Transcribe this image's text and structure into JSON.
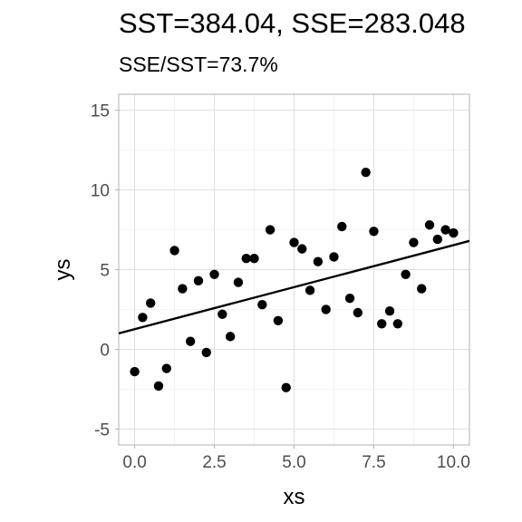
{
  "chart_data": {
    "type": "scatter",
    "title": "SST=384.04, SSE=283.048",
    "subtitle": "SSE/SST=73.7%",
    "xlabel": "xs",
    "ylabel": "ys",
    "xlim": [
      -0.5,
      10.5
    ],
    "ylim": [
      -6,
      16
    ],
    "x_ticks": [
      0,
      2.5,
      5,
      7.5,
      10
    ],
    "x_tick_labels": [
      "0.0",
      "2.5",
      "5.0",
      "7.5",
      "10.0"
    ],
    "y_ticks": [
      -5,
      0,
      5,
      10,
      15
    ],
    "y_tick_labels": [
      "-5",
      "0",
      "5",
      "10",
      "15"
    ],
    "grid": true,
    "series": [
      {
        "type": "scatter",
        "x": [
          0,
          0.25,
          0.5,
          0.75,
          1.0,
          1.25,
          1.5,
          1.75,
          2.0,
          2.25,
          2.5,
          2.75,
          3.0,
          3.25,
          3.5,
          3.75,
          4.0,
          4.25,
          4.5,
          4.75,
          5.0,
          5.25,
          5.5,
          5.75,
          6.0,
          6.25,
          6.5,
          6.75,
          7.0,
          7.25,
          7.5,
          7.75,
          8.0,
          8.25,
          8.5,
          8.75,
          9.0,
          9.25,
          9.5,
          9.75,
          10.0
        ],
        "y": [
          -1.4,
          2.0,
          2.9,
          -2.3,
          -1.2,
          6.2,
          3.8,
          0.5,
          4.3,
          -0.2,
          4.7,
          2.2,
          0.8,
          4.2,
          5.7,
          5.7,
          2.8,
          7.5,
          1.8,
          -2.4,
          6.7,
          6.3,
          3.7,
          5.5,
          2.5,
          5.8,
          7.7,
          3.2,
          2.3,
          11.1,
          7.4,
          1.6,
          2.4,
          1.6,
          4.7,
          6.7,
          3.8,
          7.8,
          6.9,
          7.5,
          7.3
        ]
      },
      {
        "type": "line",
        "x": [
          -0.5,
          10.5
        ],
        "y": [
          1.0,
          6.8
        ]
      }
    ]
  }
}
